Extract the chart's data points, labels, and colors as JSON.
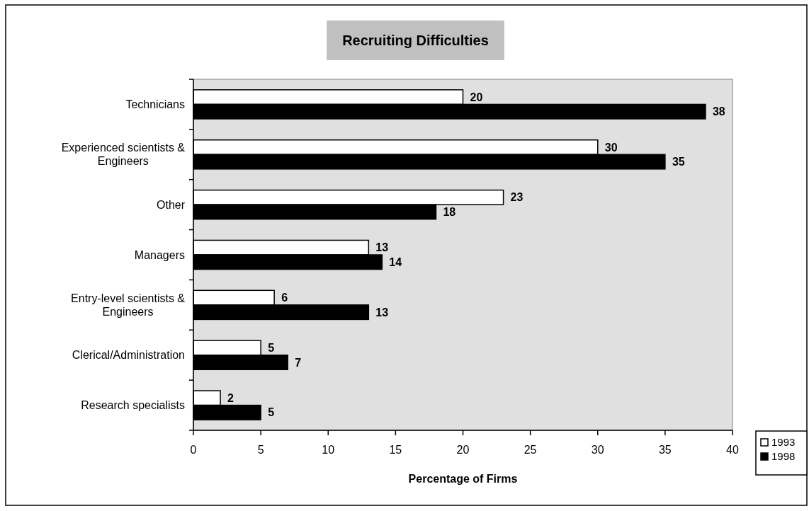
{
  "chart_data": {
    "type": "bar",
    "orientation": "horizontal",
    "title": "Recruiting Difficulties",
    "xlabel": "Percentage of Firms",
    "categories": [
      "Technicians",
      "Experienced scientists & Engineers",
      "Other",
      "Managers",
      "Entry-level scientists & Engineers",
      "Clerical/Administration",
      "Research specialists"
    ],
    "series": [
      {
        "name": "1993",
        "color": "#ffffff",
        "values": [
          20,
          30,
          23,
          13,
          6,
          5,
          2
        ]
      },
      {
        "name": "1998",
        "color": "#000000",
        "values": [
          38,
          35,
          18,
          14,
          13,
          7,
          5
        ]
      }
    ],
    "xlim": [
      0,
      40
    ],
    "xticks": [
      0,
      5,
      10,
      15,
      20,
      25,
      30,
      35,
      40
    ],
    "data_labels": true,
    "legend": "bottom right"
  }
}
